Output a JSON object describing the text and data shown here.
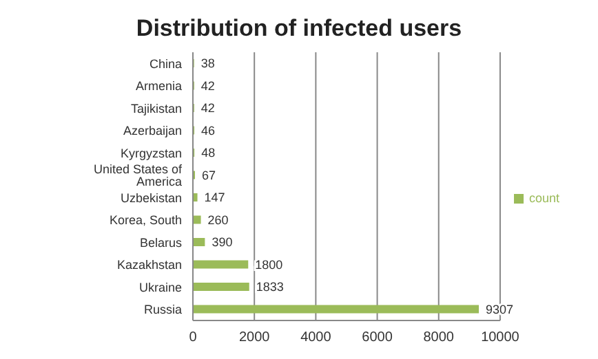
{
  "chart_data": {
    "type": "bar",
    "orientation": "horizontal",
    "title": "Distribution of infected users",
    "categories": [
      "China",
      "Armenia",
      "Tajikistan",
      "Azerbaijan",
      "Kyrgyzstan",
      "United States of America",
      "Uzbekistan",
      "Korea, South",
      "Belarus",
      "Kazakhstan",
      "Ukraine",
      "Russia"
    ],
    "series": [
      {
        "name": "count",
        "color": "#9bbb59",
        "values": [
          38,
          42,
          42,
          46,
          48,
          67,
          147,
          260,
          390,
          1800,
          1833,
          9307
        ]
      }
    ],
    "xlim": [
      0,
      10000
    ],
    "xticks": [
      0,
      2000,
      4000,
      6000,
      8000,
      10000
    ],
    "grid": "x",
    "legend": "right",
    "data_labels": true
  }
}
